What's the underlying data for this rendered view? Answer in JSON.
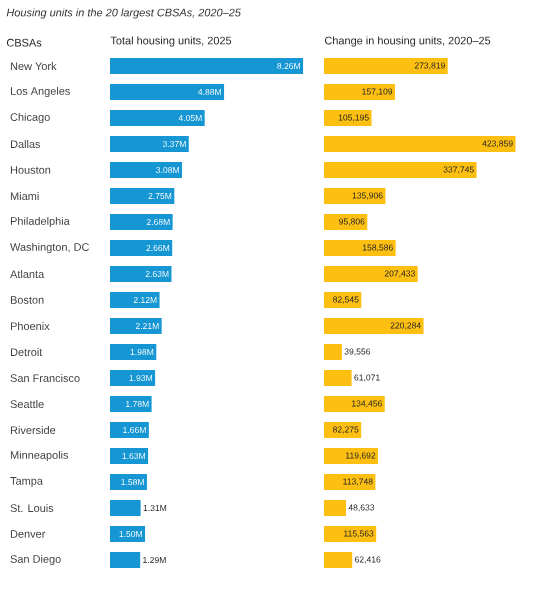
{
  "chart_data": [
    {
      "type": "bar",
      "orientation": "horizontal",
      "title": "Housing units in the 20 largest CBSAs, 2020–25",
      "ylabel": "CBSAs",
      "xlabel": "Total housing units, 2025",
      "categories": [
        "New York",
        "Los Angeles",
        "Chicago",
        "Dallas",
        "Houston",
        "Miami",
        "Philadelphia",
        "Washington, DC",
        "Atlanta",
        "Boston",
        "Phoenix",
        "Detroit",
        "San Francisco",
        "Seattle",
        "Riverside",
        "Minneapolis",
        "Tampa",
        "St. Louis",
        "Denver",
        "San Diego"
      ],
      "values": [
        8.26,
        4.88,
        4.05,
        3.37,
        3.08,
        2.75,
        2.68,
        2.66,
        2.63,
        2.12,
        2.21,
        1.98,
        1.93,
        1.78,
        1.66,
        1.63,
        1.58,
        1.31,
        1.5,
        1.29
      ],
      "value_labels": [
        "8.26M",
        "4.88M",
        "4.05M",
        "3.37M",
        "3.08M",
        "2.75M",
        "2.68M",
        "2.66M",
        "2.63M",
        "2.12M",
        "2.21M",
        "1.98M",
        "1.93M",
        "1.78M",
        "1.66M",
        "1.63M",
        "1.58M",
        "1.31M",
        "1.50M",
        "1.29M"
      ],
      "color": "#1696d2",
      "xlim": [
        0,
        8.3
      ],
      "tick_labels": "y"
    },
    {
      "type": "bar",
      "orientation": "horizontal",
      "xlabel": "Change in housing units, 2020–25",
      "categories": [
        null,
        null,
        null,
        null,
        null,
        null,
        null,
        null,
        null,
        null,
        null,
        null,
        null,
        null,
        null,
        null,
        null,
        null,
        null,
        null
      ],
      "values": [
        273819,
        157109,
        105195,
        423859,
        337745,
        135906,
        95806,
        158586,
        207433,
        82545,
        220284,
        39556,
        61071,
        134456,
        82275,
        119692,
        113748,
        48633,
        115563,
        62416
      ],
      "value_labels": [
        "273,819",
        "157,109",
        "105,195",
        "423,859",
        "337,745",
        "135,906",
        "95,806",
        "158,586",
        "207,433",
        "82,545",
        "220,284",
        "39,556",
        "61,071",
        "134,456",
        "82,275",
        "119,692",
        "113,748",
        "48,633",
        "115,563",
        "62,416"
      ],
      "color": "#fdbf11",
      "xlim": [
        0,
        425000
      ],
      "tick_labels": false
    }
  ]
}
